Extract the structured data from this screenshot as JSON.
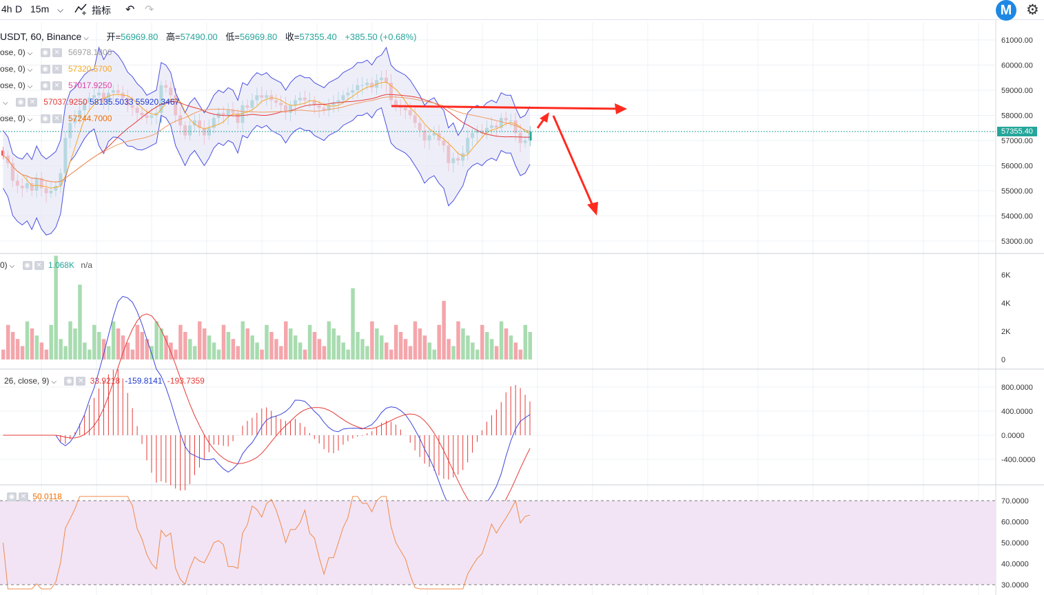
{
  "toolbar": {
    "intervals": [
      "4h",
      "D",
      "15m"
    ],
    "indicators_label": "指标"
  },
  "header": {
    "symbol": "USDT, 60, Binance",
    "open_label": "开=",
    "open": "56969.80",
    "high_label": "高=",
    "high": "57490.00",
    "low_label": "低=",
    "low": "56969.80",
    "close_label": "收=",
    "close": "57355.40",
    "change": "+385.50 (+0.68%)"
  },
  "indicators": [
    {
      "name": "ose, 0)",
      "value": "56978.1800",
      "color": "#9e9e9e"
    },
    {
      "name": "ose, 0)",
      "value": "57320.5700",
      "color": "#f5a623"
    },
    {
      "name": "ose, 0)",
      "value": "57017.9250",
      "color": "#e040a0"
    },
    {
      "name": "",
      "values": [
        "57037.9250",
        "58135.5033",
        "55920.3467"
      ],
      "colors": [
        "#e53935",
        "#1e3ad0",
        "#1e3ad0"
      ]
    },
    {
      "name": "ose, 0)",
      "value": "57244.7000",
      "color": "#ef6c00"
    }
  ],
  "volume": {
    "name": "0)",
    "value": "1.068K",
    "extra": "n/a",
    "color": "#26a69a"
  },
  "macd": {
    "name": "26, close, 9)",
    "values": [
      "33.9218",
      "-159.8141",
      "-193.7359"
    ],
    "colors": [
      "#e53935",
      "#1e3ad0",
      "#e53935"
    ]
  },
  "rsi": {
    "value": "50.0118",
    "color": "#ef6c00"
  },
  "price_axis": [
    "61000.00",
    "60000.00",
    "59000.00",
    "58000.00",
    "57000.00",
    "56000.00",
    "55000.00",
    "54000.00",
    "53000.00"
  ],
  "current_price": "57355.40",
  "volume_axis": [
    "6K",
    "4K",
    "2K",
    "0"
  ],
  "macd_axis": [
    "800.0000",
    "400.0000",
    "0.0000",
    "-400.0000"
  ],
  "rsi_axis": [
    "70.0000",
    "60.0000",
    "50.0000",
    "40.0000",
    "30.0000"
  ],
  "colors": {
    "up": "#26a69a",
    "down": "#ef5350",
    "band_fill": "#e8e8f7",
    "rsi_fill": "#f2e4f4",
    "arrow": "#ff2a1f"
  }
}
